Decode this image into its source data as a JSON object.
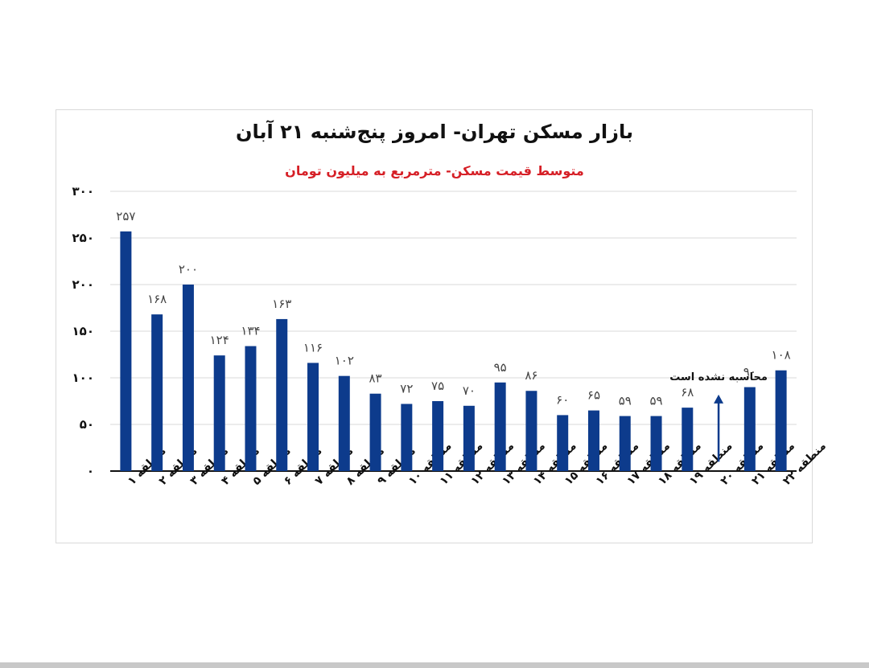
{
  "chart_data": {
    "type": "bar",
    "title": "بازار مسکن تهران- امروز پنج‌شنبه ۲۱ آبان",
    "subtitle": "متوسط قیمت مسکن- مترمربع به میلیون تومان",
    "categories": [
      "منطقه ۱",
      "منطقه ۲",
      "منطقه ۳",
      "منطقه ۴",
      "منطقه ۵",
      "منطقه ۶",
      "منطقه ۷",
      "منطقه ۸",
      "منطقه ۹",
      "منطقه ۱۰",
      "منطقه ۱۱",
      "منطقه ۱۲",
      "منطقه ۱۳",
      "منطقه ۱۴",
      "منطقه ۱۵",
      "منطقه ۱۶",
      "منطقه ۱۷",
      "منطقه ۱۸",
      "منطقه ۱۹",
      "منطقه ۲۰",
      "منطقه ۲۱",
      "منطقه ۲۲"
    ],
    "values": [
      257,
      168,
      200,
      124,
      134,
      163,
      116,
      102,
      83,
      72,
      75,
      70,
      95,
      86,
      60,
      65,
      59,
      59,
      68,
      null,
      90,
      108
    ],
    "data_labels": [
      "۲۵۷",
      "۱۶۸",
      "۲۰۰",
      "۱۲۴",
      "۱۳۴",
      "۱۶۳",
      "۱۱۶",
      "۱۰۲",
      "۸۳",
      "۷۲",
      "۷۵",
      "۷۰",
      "۹۵",
      "۸۶",
      "۶۰",
      "۶۵",
      "۵۹",
      "۵۹",
      "۶۸",
      "",
      "۹۰",
      "۱۰۸"
    ],
    "ylim": [
      0,
      300
    ],
    "yticks": [
      0,
      50,
      100,
      150,
      200,
      250,
      300
    ],
    "ytick_labels": [
      "۰",
      "۵۰",
      "۱۰۰",
      "۱۵۰",
      "۲۰۰",
      "۲۵۰",
      "۳۰۰"
    ],
    "annotation": {
      "text": "محاسبه نشده است",
      "category": "منطقه ۲۰"
    },
    "grid": true,
    "legend": "none",
    "colors": {
      "bar": "#0d3b8c",
      "subtitle": "#d61f26",
      "grid": "#d9d9d9",
      "arrow": "#0d3b8c"
    }
  }
}
